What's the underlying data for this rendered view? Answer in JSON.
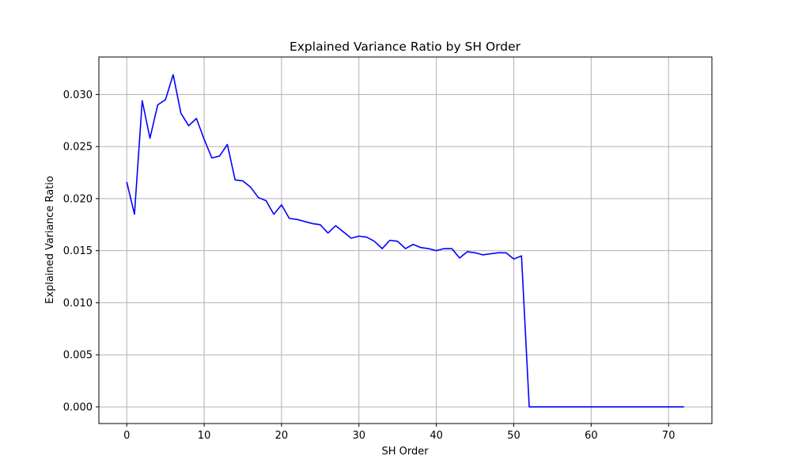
{
  "chart_data": {
    "type": "line",
    "title": "Explained Variance Ratio by SH Order",
    "xlabel": "SH Order",
    "ylabel": "Explained Variance Ratio",
    "xlim": [
      -3.6,
      75.6
    ],
    "ylim": [
      -0.0016,
      0.0336
    ],
    "xticks": [
      0,
      10,
      20,
      30,
      40,
      50,
      60,
      70
    ],
    "xtick_labels": [
      "0",
      "10",
      "20",
      "30",
      "40",
      "50",
      "60",
      "70"
    ],
    "yticks": [
      0.0,
      0.005,
      0.01,
      0.015,
      0.02,
      0.025,
      0.03
    ],
    "ytick_labels": [
      "0.000",
      "0.005",
      "0.010",
      "0.015",
      "0.020",
      "0.025",
      "0.030"
    ],
    "grid": true,
    "color": "#0000ff",
    "series": [
      {
        "x": [
          0,
          1,
          2,
          3,
          4,
          5,
          6,
          7,
          8,
          9,
          10,
          11,
          12,
          13,
          14,
          15,
          16,
          17,
          18,
          19,
          20,
          21,
          22,
          23,
          24,
          25,
          26,
          27,
          28,
          29,
          30,
          31,
          32,
          33,
          34,
          35,
          36,
          37,
          38,
          39,
          40,
          41,
          42,
          43,
          44,
          45,
          46,
          47,
          48,
          49,
          50,
          51,
          52,
          53,
          54,
          55,
          56,
          57,
          58,
          59,
          60,
          61,
          62,
          63,
          64,
          65,
          66,
          67,
          68,
          69,
          70,
          71,
          72
        ],
        "y": [
          0.0216,
          0.0185,
          0.0294,
          0.0258,
          0.029,
          0.0295,
          0.0319,
          0.0282,
          0.027,
          0.0277,
          0.0257,
          0.0239,
          0.0241,
          0.0252,
          0.0218,
          0.0217,
          0.0211,
          0.0201,
          0.0198,
          0.0185,
          0.0194,
          0.0181,
          0.018,
          0.0178,
          0.0176,
          0.0175,
          0.0167,
          0.0174,
          0.0168,
          0.0162,
          0.0164,
          0.0163,
          0.0159,
          0.0152,
          0.016,
          0.0159,
          0.0152,
          0.0156,
          0.0153,
          0.0152,
          0.015,
          0.0152,
          0.0152,
          0.0143,
          0.0149,
          0.0148,
          0.0146,
          0.0147,
          0.0148,
          0.0148,
          0.0142,
          0.0145,
          0.0,
          0.0,
          0.0,
          0.0,
          0.0,
          0.0,
          0.0,
          0.0,
          0.0,
          0.0,
          0.0,
          0.0,
          0.0,
          0.0,
          0.0,
          0.0,
          0.0,
          0.0,
          0.0,
          0.0,
          0.0
        ]
      }
    ]
  }
}
